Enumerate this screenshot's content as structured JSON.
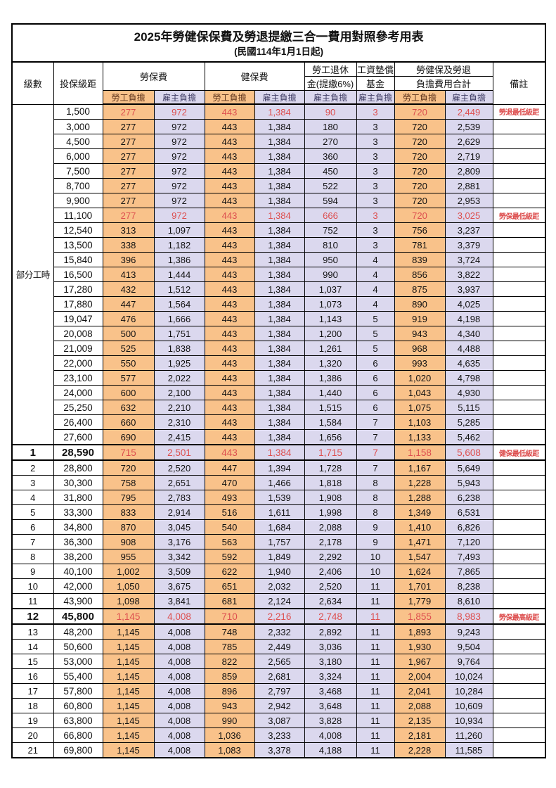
{
  "title": "2025年勞健保保費及勞退提繳三合一費用對照參考用表",
  "subtitle": "(民國114年1月1日起)",
  "columns": {
    "level": "級數",
    "bracket": "投保級距",
    "labor_insurance": "勞保費",
    "health_insurance": "健保費",
    "pension_line1": "勞工退休",
    "pension_line2": "金(提繳6%)",
    "wage_fund_line1": "工資墊償",
    "wage_fund_line2": "基金",
    "total_line1": "勞健保及勞退",
    "total_line2": "負擔費用合計",
    "remarks": "備註",
    "employee_share": "勞工負擔",
    "employer_share": "雇主負擔"
  },
  "part_time_label": "部分工時",
  "part_time_row_count": 23,
  "colors": {
    "employee_bg": "#F9C28A",
    "employer_bg": "#DBD8EE",
    "highlight_text": "#DD4F4F"
  },
  "rows": [
    {
      "level": null,
      "bracket": "1,500",
      "values": [
        "277",
        "972",
        "443",
        "1,384",
        "90",
        "3",
        "720",
        "2,449"
      ],
      "note": "勞退最低級距",
      "highlight": true,
      "bold_row": false,
      "boxed": false
    },
    {
      "level": null,
      "bracket": "3,000",
      "values": [
        "277",
        "972",
        "443",
        "1,384",
        "180",
        "3",
        "720",
        "2,539"
      ],
      "note": "",
      "highlight": false,
      "bold_row": false,
      "boxed": false
    },
    {
      "level": null,
      "bracket": "4,500",
      "values": [
        "277",
        "972",
        "443",
        "1,384",
        "270",
        "3",
        "720",
        "2,629"
      ],
      "note": "",
      "highlight": false,
      "bold_row": false,
      "boxed": false
    },
    {
      "level": null,
      "bracket": "6,000",
      "values": [
        "277",
        "972",
        "443",
        "1,384",
        "360",
        "3",
        "720",
        "2,719"
      ],
      "note": "",
      "highlight": false,
      "bold_row": false,
      "boxed": false
    },
    {
      "level": null,
      "bracket": "7,500",
      "values": [
        "277",
        "972",
        "443",
        "1,384",
        "450",
        "3",
        "720",
        "2,809"
      ],
      "note": "",
      "highlight": false,
      "bold_row": false,
      "boxed": false
    },
    {
      "level": null,
      "bracket": "8,700",
      "values": [
        "277",
        "972",
        "443",
        "1,384",
        "522",
        "3",
        "720",
        "2,881"
      ],
      "note": "",
      "highlight": false,
      "bold_row": false,
      "boxed": false
    },
    {
      "level": null,
      "bracket": "9,900",
      "values": [
        "277",
        "972",
        "443",
        "1,384",
        "594",
        "3",
        "720",
        "2,953"
      ],
      "note": "",
      "highlight": false,
      "bold_row": false,
      "boxed": false
    },
    {
      "level": null,
      "bracket": "11,100",
      "values": [
        "277",
        "972",
        "443",
        "1,384",
        "666",
        "3",
        "720",
        "3,025"
      ],
      "note": "勞保最低級距",
      "highlight": true,
      "bold_row": false,
      "boxed": false
    },
    {
      "level": null,
      "bracket": "12,540",
      "values": [
        "313",
        "1,097",
        "443",
        "1,384",
        "752",
        "3",
        "756",
        "3,237"
      ],
      "note": "",
      "highlight": false,
      "bold_row": false,
      "boxed": false
    },
    {
      "level": null,
      "bracket": "13,500",
      "values": [
        "338",
        "1,182",
        "443",
        "1,384",
        "810",
        "3",
        "781",
        "3,379"
      ],
      "note": "",
      "highlight": false,
      "bold_row": false,
      "boxed": false
    },
    {
      "level": null,
      "bracket": "15,840",
      "values": [
        "396",
        "1,386",
        "443",
        "1,384",
        "950",
        "4",
        "839",
        "3,724"
      ],
      "note": "",
      "highlight": false,
      "bold_row": false,
      "boxed": false
    },
    {
      "level": null,
      "bracket": "16,500",
      "values": [
        "413",
        "1,444",
        "443",
        "1,384",
        "990",
        "4",
        "856",
        "3,822"
      ],
      "note": "",
      "highlight": false,
      "bold_row": false,
      "boxed": false
    },
    {
      "level": null,
      "bracket": "17,280",
      "values": [
        "432",
        "1,512",
        "443",
        "1,384",
        "1,037",
        "4",
        "875",
        "3,937"
      ],
      "note": "",
      "highlight": false,
      "bold_row": false,
      "boxed": false
    },
    {
      "level": null,
      "bracket": "17,880",
      "values": [
        "447",
        "1,564",
        "443",
        "1,384",
        "1,073",
        "4",
        "890",
        "4,025"
      ],
      "note": "",
      "highlight": false,
      "bold_row": false,
      "boxed": false
    },
    {
      "level": null,
      "bracket": "19,047",
      "values": [
        "476",
        "1,666",
        "443",
        "1,384",
        "1,143",
        "5",
        "919",
        "4,198"
      ],
      "note": "",
      "highlight": false,
      "bold_row": false,
      "boxed": false
    },
    {
      "level": null,
      "bracket": "20,008",
      "values": [
        "500",
        "1,751",
        "443",
        "1,384",
        "1,200",
        "5",
        "943",
        "4,340"
      ],
      "note": "",
      "highlight": false,
      "bold_row": false,
      "boxed": false
    },
    {
      "level": null,
      "bracket": "21,009",
      "values": [
        "525",
        "1,838",
        "443",
        "1,384",
        "1,261",
        "5",
        "968",
        "4,488"
      ],
      "note": "",
      "highlight": false,
      "bold_row": false,
      "boxed": false
    },
    {
      "level": null,
      "bracket": "22,000",
      "values": [
        "550",
        "1,925",
        "443",
        "1,384",
        "1,320",
        "6",
        "993",
        "4,635"
      ],
      "note": "",
      "highlight": false,
      "bold_row": false,
      "boxed": false
    },
    {
      "level": null,
      "bracket": "23,100",
      "values": [
        "577",
        "2,022",
        "443",
        "1,384",
        "1,386",
        "6",
        "1,020",
        "4,798"
      ],
      "note": "",
      "highlight": false,
      "bold_row": false,
      "boxed": false
    },
    {
      "level": null,
      "bracket": "24,000",
      "values": [
        "600",
        "2,100",
        "443",
        "1,384",
        "1,440",
        "6",
        "1,043",
        "4,930"
      ],
      "note": "",
      "highlight": false,
      "bold_row": false,
      "boxed": false
    },
    {
      "level": null,
      "bracket": "25,250",
      "values": [
        "632",
        "2,210",
        "443",
        "1,384",
        "1,515",
        "6",
        "1,075",
        "5,115"
      ],
      "note": "",
      "highlight": false,
      "bold_row": false,
      "boxed": false
    },
    {
      "level": null,
      "bracket": "26,400",
      "values": [
        "660",
        "2,310",
        "443",
        "1,384",
        "1,584",
        "7",
        "1,103",
        "5,285"
      ],
      "note": "",
      "highlight": false,
      "bold_row": false,
      "boxed": false
    },
    {
      "level": null,
      "bracket": "27,600",
      "values": [
        "690",
        "2,415",
        "443",
        "1,384",
        "1,656",
        "7",
        "1,133",
        "5,462"
      ],
      "note": "",
      "highlight": false,
      "bold_row": false,
      "boxed": false
    },
    {
      "level": "1",
      "bracket": "28,590",
      "values": [
        "715",
        "2,501",
        "443",
        "1,384",
        "1,715",
        "7",
        "1,158",
        "5,608"
      ],
      "note": "健保最低級距",
      "highlight": true,
      "bold_row": true,
      "boxed": true
    },
    {
      "level": "2",
      "bracket": "28,800",
      "values": [
        "720",
        "2,520",
        "447",
        "1,394",
        "1,728",
        "7",
        "1,167",
        "5,649"
      ],
      "note": "",
      "highlight": false,
      "bold_row": false,
      "boxed": false
    },
    {
      "level": "3",
      "bracket": "30,300",
      "values": [
        "758",
        "2,651",
        "470",
        "1,466",
        "1,818",
        "8",
        "1,228",
        "5,943"
      ],
      "note": "",
      "highlight": false,
      "bold_row": false,
      "boxed": false
    },
    {
      "level": "4",
      "bracket": "31,800",
      "values": [
        "795",
        "2,783",
        "493",
        "1,539",
        "1,908",
        "8",
        "1,288",
        "6,238"
      ],
      "note": "",
      "highlight": false,
      "bold_row": false,
      "boxed": false
    },
    {
      "level": "5",
      "bracket": "33,300",
      "values": [
        "833",
        "2,914",
        "516",
        "1,611",
        "1,998",
        "8",
        "1,349",
        "6,531"
      ],
      "note": "",
      "highlight": false,
      "bold_row": false,
      "boxed": false
    },
    {
      "level": "6",
      "bracket": "34,800",
      "values": [
        "870",
        "3,045",
        "540",
        "1,684",
        "2,088",
        "9",
        "1,410",
        "6,826"
      ],
      "note": "",
      "highlight": false,
      "bold_row": false,
      "boxed": false
    },
    {
      "level": "7",
      "bracket": "36,300",
      "values": [
        "908",
        "3,176",
        "563",
        "1,757",
        "2,178",
        "9",
        "1,471",
        "7,120"
      ],
      "note": "",
      "highlight": false,
      "bold_row": false,
      "boxed": false
    },
    {
      "level": "8",
      "bracket": "38,200",
      "values": [
        "955",
        "3,342",
        "592",
        "1,849",
        "2,292",
        "10",
        "1,547",
        "7,493"
      ],
      "note": "",
      "highlight": false,
      "bold_row": false,
      "boxed": false
    },
    {
      "level": "9",
      "bracket": "40,100",
      "values": [
        "1,002",
        "3,509",
        "622",
        "1,940",
        "2,406",
        "10",
        "1,624",
        "7,865"
      ],
      "note": "",
      "highlight": false,
      "bold_row": false,
      "boxed": false
    },
    {
      "level": "10",
      "bracket": "42,000",
      "values": [
        "1,050",
        "3,675",
        "651",
        "2,032",
        "2,520",
        "11",
        "1,701",
        "8,238"
      ],
      "note": "",
      "highlight": false,
      "bold_row": false,
      "boxed": false
    },
    {
      "level": "11",
      "bracket": "43,900",
      "values": [
        "1,098",
        "3,841",
        "681",
        "2,124",
        "2,634",
        "11",
        "1,779",
        "8,610"
      ],
      "note": "",
      "highlight": false,
      "bold_row": false,
      "boxed": false
    },
    {
      "level": "12",
      "bracket": "45,800",
      "values": [
        "1,145",
        "4,008",
        "710",
        "2,216",
        "2,748",
        "11",
        "1,855",
        "8,983"
      ],
      "note": "勞保最高級距",
      "highlight": true,
      "bold_row": true,
      "boxed": true
    },
    {
      "level": "13",
      "bracket": "48,200",
      "values": [
        "1,145",
        "4,008",
        "748",
        "2,332",
        "2,892",
        "11",
        "1,893",
        "9,243"
      ],
      "note": "",
      "highlight": false,
      "bold_row": false,
      "boxed": false
    },
    {
      "level": "14",
      "bracket": "50,600",
      "values": [
        "1,145",
        "4,008",
        "785",
        "2,449",
        "3,036",
        "11",
        "1,930",
        "9,504"
      ],
      "note": "",
      "highlight": false,
      "bold_row": false,
      "boxed": false
    },
    {
      "level": "15",
      "bracket": "53,000",
      "values": [
        "1,145",
        "4,008",
        "822",
        "2,565",
        "3,180",
        "11",
        "1,967",
        "9,764"
      ],
      "note": "",
      "highlight": false,
      "bold_row": false,
      "boxed": false
    },
    {
      "level": "16",
      "bracket": "55,400",
      "values": [
        "1,145",
        "4,008",
        "859",
        "2,681",
        "3,324",
        "11",
        "2,004",
        "10,024"
      ],
      "note": "",
      "highlight": false,
      "bold_row": false,
      "boxed": false
    },
    {
      "level": "17",
      "bracket": "57,800",
      "values": [
        "1,145",
        "4,008",
        "896",
        "2,797",
        "3,468",
        "11",
        "2,041",
        "10,284"
      ],
      "note": "",
      "highlight": false,
      "bold_row": false,
      "boxed": false
    },
    {
      "level": "18",
      "bracket": "60,800",
      "values": [
        "1,145",
        "4,008",
        "943",
        "2,942",
        "3,648",
        "11",
        "2,088",
        "10,609"
      ],
      "note": "",
      "highlight": false,
      "bold_row": false,
      "boxed": false
    },
    {
      "level": "19",
      "bracket": "63,800",
      "values": [
        "1,145",
        "4,008",
        "990",
        "3,087",
        "3,828",
        "11",
        "2,135",
        "10,934"
      ],
      "note": "",
      "highlight": false,
      "bold_row": false,
      "boxed": false
    },
    {
      "level": "20",
      "bracket": "66,800",
      "values": [
        "1,145",
        "4,008",
        "1,036",
        "3,233",
        "4,008",
        "11",
        "2,181",
        "11,260"
      ],
      "note": "",
      "highlight": false,
      "bold_row": false,
      "boxed": false
    },
    {
      "level": "21",
      "bracket": "69,800",
      "values": [
        "1,145",
        "4,008",
        "1,083",
        "3,378",
        "4,188",
        "11",
        "2,228",
        "11,585"
      ],
      "note": "",
      "highlight": false,
      "bold_row": false,
      "boxed": false
    }
  ]
}
